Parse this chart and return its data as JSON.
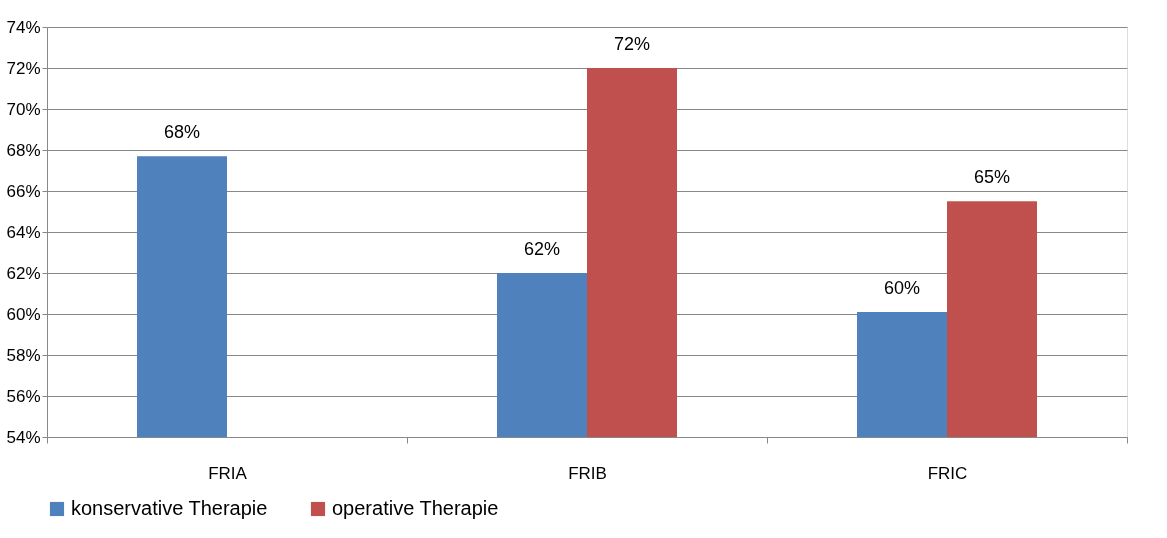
{
  "chart_data": {
    "type": "bar",
    "categories": [
      "FRIA",
      "FRIB",
      "FRIC"
    ],
    "series": [
      {
        "name": "konservative Therapie",
        "color": "#4f81bd",
        "values": [
          67.7,
          62.0,
          60.1
        ],
        "value_labels": [
          "68%",
          "62%",
          "60%"
        ]
      },
      {
        "name": "operative Therapie",
        "color": "#c0504d",
        "values": [
          null,
          72.0,
          65.5
        ],
        "value_labels": [
          null,
          "72%",
          "65%"
        ]
      }
    ],
    "ylim": [
      54,
      74
    ],
    "yticks": [
      {
        "value": 54,
        "label": "54%"
      },
      {
        "value": 56,
        "label": "56%"
      },
      {
        "value": 58,
        "label": "58%"
      },
      {
        "value": 60,
        "label": "60%"
      },
      {
        "value": 62,
        "label": "62%"
      },
      {
        "value": 64,
        "label": "64%"
      },
      {
        "value": 66,
        "label": "66%"
      },
      {
        "value": 68,
        "label": "68%"
      },
      {
        "value": 70,
        "label": "70%"
      },
      {
        "value": 72,
        "label": "72%"
      },
      {
        "value": 74,
        "label": "74%"
      }
    ],
    "grid": "y",
    "legend": "bottom"
  }
}
